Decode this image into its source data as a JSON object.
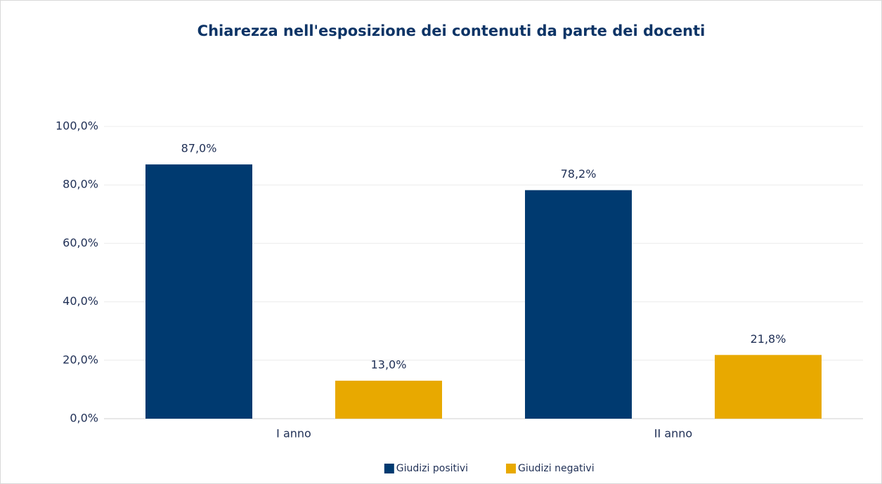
{
  "chart_data": {
    "type": "bar",
    "title": "Chiarezza nell'esposizione dei contenuti da parte dei docenti",
    "categories": [
      "I anno",
      "II anno"
    ],
    "series": [
      {
        "name": "Giudizi positivi",
        "color": "#003a70",
        "values": [
          87.0,
          78.2
        ],
        "value_labels": [
          "87,0%",
          "78,2%"
        ]
      },
      {
        "name": "Giudizi negativi",
        "color": "#e8a900",
        "values": [
          13.0,
          21.8
        ],
        "value_labels": [
          "13,0%",
          "21,8%"
        ]
      }
    ],
    "ylim": [
      0,
      100
    ],
    "yticks": [
      {
        "value": 0,
        "label": "0,0%"
      },
      {
        "value": 20,
        "label": "20,0%"
      },
      {
        "value": 40,
        "label": "40,0%"
      },
      {
        "value": 60,
        "label": "60,0%"
      },
      {
        "value": 80,
        "label": "80,0%"
      },
      {
        "value": 100,
        "label": "100,0%"
      }
    ],
    "grid": true,
    "legend": "bottom"
  }
}
